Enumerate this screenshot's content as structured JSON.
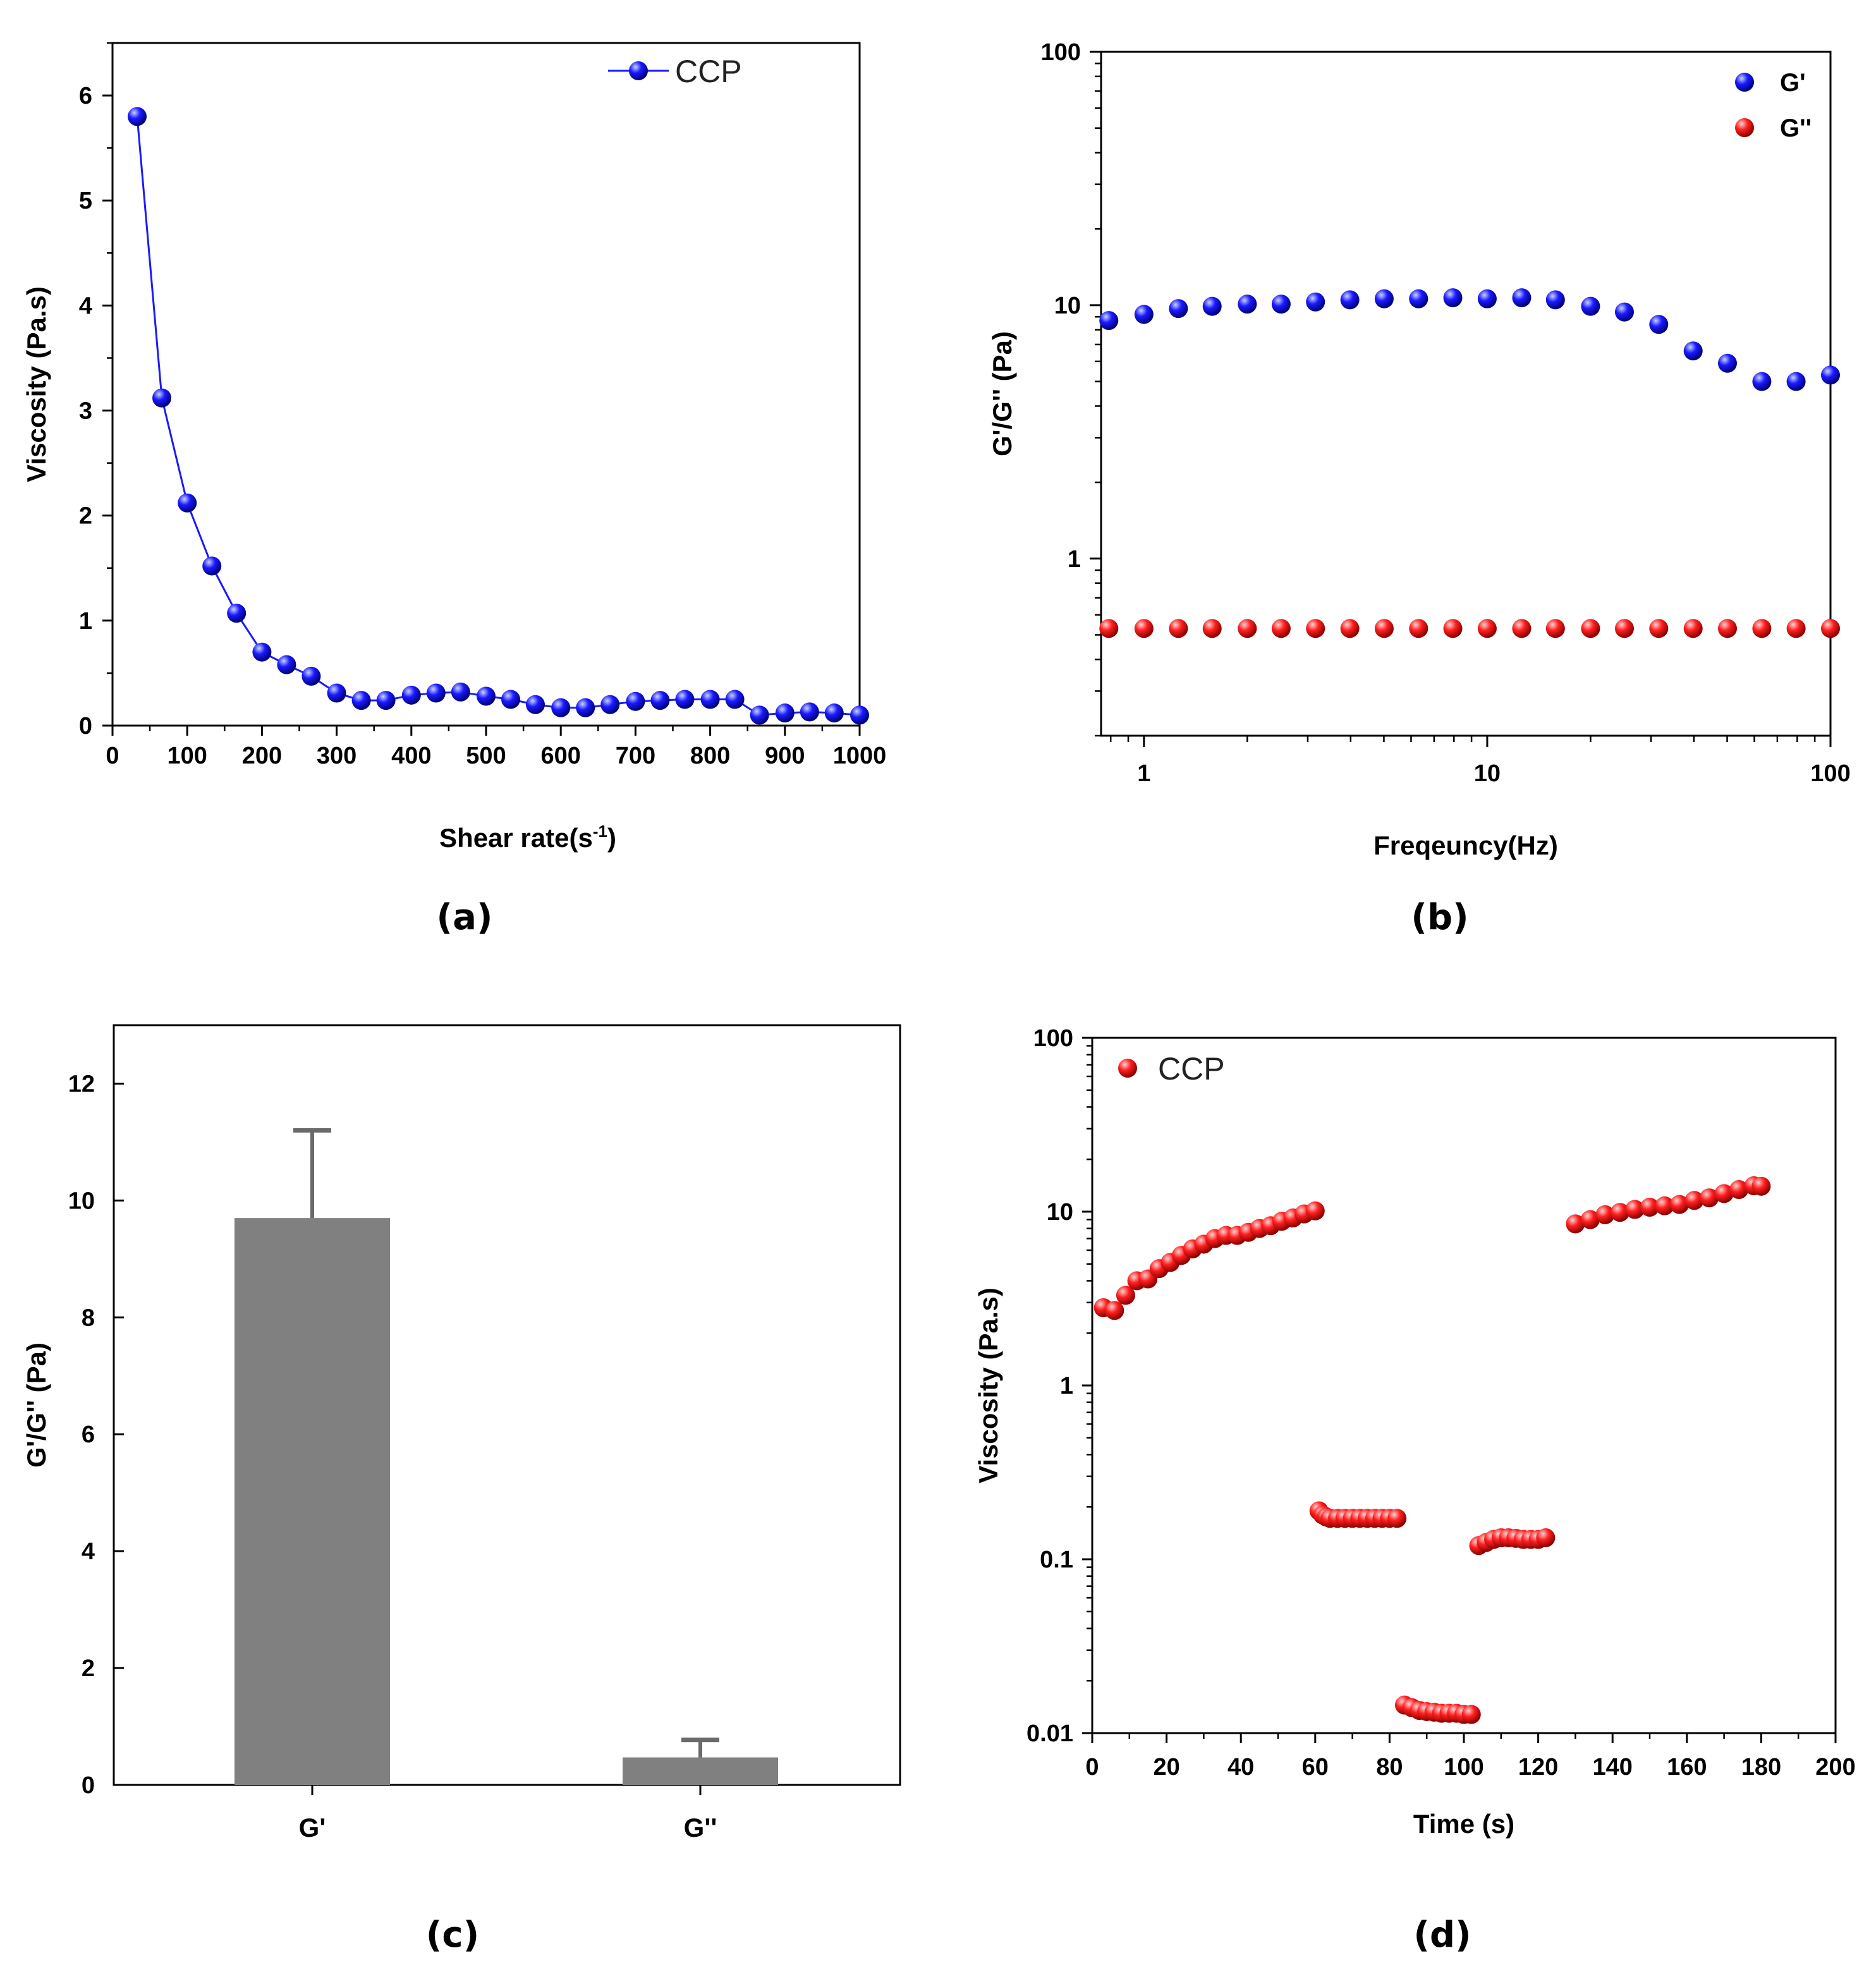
{
  "colors": {
    "blue": "#1a1aff",
    "red": "#ff2020",
    "bar": "#808080",
    "errbar": "#6a6a6a"
  },
  "chart_data": [
    {
      "panel_label": "(a)",
      "type": "line",
      "xlabel": "Shear rate(s",
      "xlabel_sup": "-1",
      "xlabel_end": ")",
      "ylabel": "Viscosity (Pa.s)",
      "xlim": [
        0,
        1000
      ],
      "ylim": [
        0,
        6.5
      ],
      "xticks": [
        0,
        100,
        200,
        300,
        400,
        500,
        600,
        700,
        800,
        900,
        1000
      ],
      "yticks": [
        0,
        1,
        2,
        3,
        4,
        5,
        6
      ],
      "legend": "CCP",
      "series": [
        {
          "name": "CCP",
          "x": [
            33,
            66,
            100,
            133,
            166,
            200,
            233,
            266,
            300,
            333,
            366,
            400,
            433,
            466,
            500,
            533,
            566,
            600,
            633,
            666,
            700,
            733,
            766,
            800,
            833,
            866,
            900,
            933,
            966,
            1000
          ],
          "y": [
            5.8,
            3.12,
            2.12,
            1.52,
            1.07,
            0.7,
            0.58,
            0.47,
            0.31,
            0.24,
            0.24,
            0.29,
            0.31,
            0.32,
            0.28,
            0.25,
            0.2,
            0.17,
            0.17,
            0.2,
            0.23,
            0.24,
            0.25,
            0.25,
            0.25,
            0.1,
            0.12,
            0.13,
            0.12,
            0.1
          ]
        }
      ]
    },
    {
      "panel_label": "(b)",
      "type": "scatter",
      "xscale": "log",
      "yscale": "log",
      "xlabel": "Freqeuncy(Hz)",
      "ylabel": "G'/G'' (Pa)",
      "xlim": [
        0.75,
        100
      ],
      "ylim": [
        0.2,
        100
      ],
      "xticks": [
        1,
        10,
        100
      ],
      "xticklabels": [
        "1",
        "10",
        "100"
      ],
      "yticks": [
        1,
        10,
        100
      ],
      "yticklabels": [
        "1",
        "10",
        "100"
      ],
      "legend": [
        "G'",
        "G''"
      ],
      "series": [
        {
          "name": "G'",
          "x": [
            0.79,
            1.0,
            1.26,
            1.58,
            2.0,
            2.51,
            3.16,
            3.98,
            5.01,
            6.31,
            7.94,
            10.0,
            12.6,
            15.8,
            20.0,
            25.1,
            31.6,
            39.8,
            50.1,
            63.1,
            79.4,
            100
          ],
          "y": [
            8.7,
            9.2,
            9.7,
            9.9,
            10.1,
            10.1,
            10.3,
            10.5,
            10.6,
            10.6,
            10.7,
            10.6,
            10.7,
            10.5,
            9.9,
            9.4,
            8.4,
            6.6,
            5.9,
            5.0,
            5.0,
            5.3
          ]
        },
        {
          "name": "G''",
          "x": [
            0.79,
            1.0,
            1.26,
            1.58,
            2.0,
            2.51,
            3.16,
            3.98,
            5.01,
            6.31,
            7.94,
            10.0,
            12.6,
            15.8,
            20.0,
            25.1,
            31.6,
            39.8,
            50.1,
            63.1,
            79.4,
            100
          ],
          "y": [
            0.53,
            0.53,
            0.53,
            0.53,
            0.53,
            0.53,
            0.53,
            0.53,
            0.53,
            0.53,
            0.53,
            0.53,
            0.53,
            0.53,
            0.53,
            0.53,
            0.53,
            0.53,
            0.53,
            0.53,
            0.53,
            0.53
          ]
        }
      ]
    },
    {
      "panel_label": "(c)",
      "type": "bar",
      "xlabel": "",
      "ylabel": "G'/G'' (Pa)",
      "ylim": [
        0,
        13
      ],
      "yticks": [
        0,
        2,
        4,
        6,
        8,
        10,
        12
      ],
      "categories": [
        "G'",
        "G''"
      ],
      "values": [
        9.7,
        0.47
      ],
      "errors": [
        1.5,
        0.3
      ]
    },
    {
      "panel_label": "(d)",
      "type": "scatter",
      "yscale": "log",
      "xlabel": "Time (s)",
      "ylabel": "Viscosity (Pa.s)",
      "xlim": [
        0,
        200
      ],
      "ylim": [
        0.01,
        100
      ],
      "xticks": [
        0,
        20,
        40,
        60,
        80,
        100,
        120,
        140,
        160,
        180,
        200
      ],
      "yticks": [
        0.01,
        0.1,
        1,
        10,
        100
      ],
      "yticklabels": [
        "0.01",
        "0.1",
        "1",
        "10",
        "100"
      ],
      "legend": "CCP",
      "series": [
        {
          "name": "CCP",
          "x": [
            3,
            6,
            9,
            12,
            15,
            18,
            21,
            24,
            27,
            30,
            33,
            36,
            39,
            42,
            45,
            48,
            51,
            54,
            57,
            60,
            61,
            62,
            63,
            64,
            66,
            68,
            70,
            72,
            74,
            76,
            78,
            80,
            82,
            84,
            86,
            88,
            90,
            92,
            94,
            96,
            98,
            100,
            102,
            104,
            106,
            108,
            110,
            112,
            114,
            116,
            118,
            120,
            122,
            130,
            134,
            138,
            142,
            146,
            150,
            154,
            158,
            162,
            166,
            170,
            174,
            178,
            180
          ],
          "y": [
            2.8,
            2.7,
            3.3,
            4.0,
            4.1,
            4.7,
            5.1,
            5.6,
            6.1,
            6.5,
            7.0,
            7.3,
            7.3,
            7.6,
            8.0,
            8.3,
            8.8,
            9.2,
            9.7,
            10.1,
            0.19,
            0.18,
            0.175,
            0.172,
            0.172,
            0.172,
            0.172,
            0.172,
            0.172,
            0.172,
            0.172,
            0.172,
            0.172,
            0.0145,
            0.014,
            0.0135,
            0.0133,
            0.0132,
            0.013,
            0.013,
            0.013,
            0.0128,
            0.0128,
            0.12,
            0.125,
            0.13,
            0.133,
            0.133,
            0.132,
            0.13,
            0.13,
            0.13,
            0.133,
            8.5,
            9.0,
            9.6,
            9.9,
            10.3,
            10.6,
            10.8,
            11.0,
            11.6,
            12.0,
            12.7,
            13.4,
            14.1,
            14.0
          ]
        }
      ]
    }
  ]
}
